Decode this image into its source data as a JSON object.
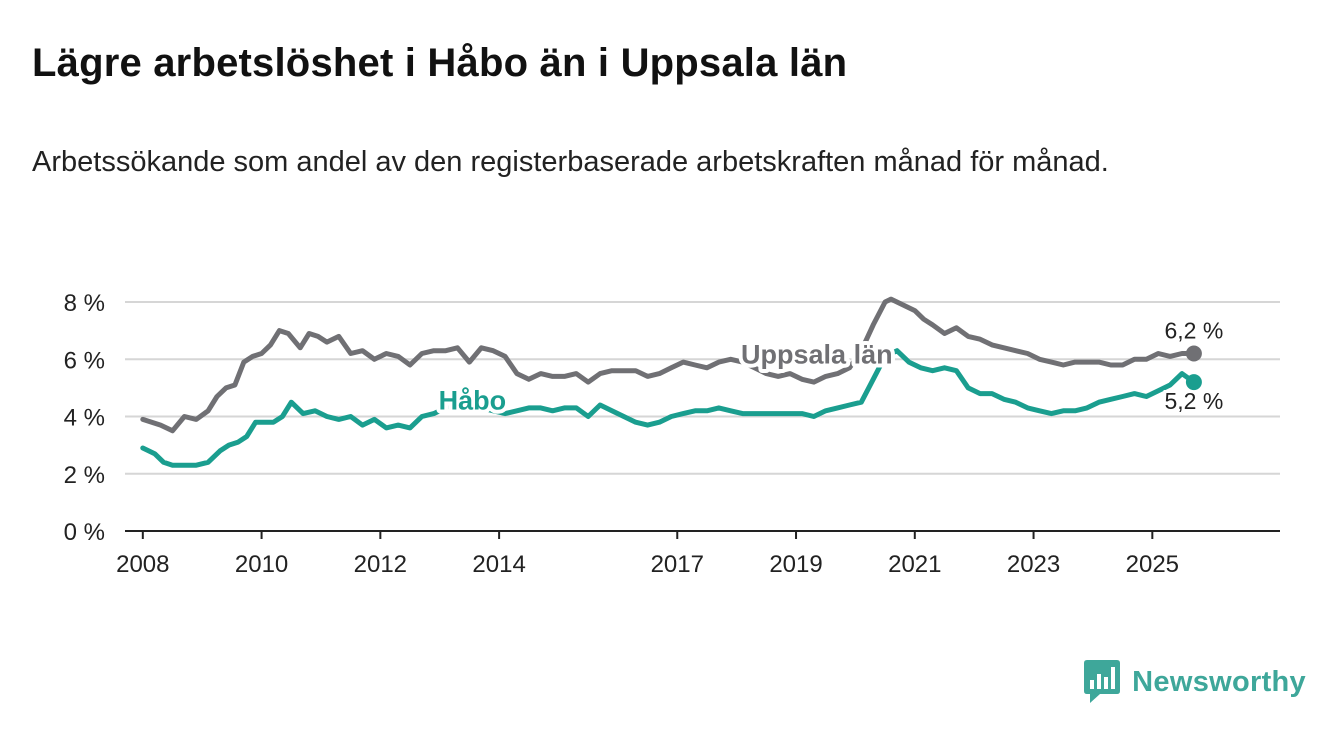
{
  "title": "Lägre arbetslöshet i Håbo än i Uppsala län",
  "subtitle": "Arbetssökande som andel av den registerbaserade arbetskraften månad för månad.",
  "brand": {
    "name": "Newsworthy",
    "icon": "bar-chart-logo-icon"
  },
  "colors": {
    "uppsala": "#707074",
    "habo": "#1a9e8f",
    "grid": "#d6d6d6",
    "axis": "#222222",
    "brand": "#3ea79a"
  },
  "chart_data": {
    "type": "line",
    "title": "Lägre arbetslöshet i Håbo än i Uppsala län",
    "xlabel": "",
    "ylabel": "",
    "ylim": [
      0,
      8
    ],
    "xlim": [
      2007.7,
      2027.15
    ],
    "y_ticks": [
      0,
      2,
      4,
      6,
      8
    ],
    "y_tick_labels": [
      "0 %",
      "2 %",
      "4 %",
      "6 %",
      "8 %"
    ],
    "x_ticks": [
      2008,
      2010,
      2012,
      2014,
      2017,
      2019,
      2021,
      2023,
      2025
    ],
    "x_tick_labels": [
      "2008",
      "2010",
      "2012",
      "2014",
      "2017",
      "2019",
      "2021",
      "2023",
      "2025"
    ],
    "grid": true,
    "series": [
      {
        "name": "Uppsala län",
        "color": "#707074",
        "end_label": "6,2 %",
        "x": [
          2008.0,
          2008.3,
          2008.5,
          2008.7,
          2008.9,
          2009.1,
          2009.25,
          2009.4,
          2009.55,
          2009.7,
          2009.85,
          2010.0,
          2010.15,
          2010.3,
          2010.45,
          2010.65,
          2010.8,
          2010.95,
          2011.1,
          2011.3,
          2011.5,
          2011.7,
          2011.9,
          2012.1,
          2012.3,
          2012.5,
          2012.7,
          2012.9,
          2013.1,
          2013.3,
          2013.5,
          2013.7,
          2013.9,
          2014.1,
          2014.3,
          2014.5,
          2014.7,
          2014.9,
          2015.1,
          2015.3,
          2015.5,
          2015.7,
          2015.9,
          2016.1,
          2016.3,
          2016.5,
          2016.7,
          2016.9,
          2017.1,
          2017.3,
          2017.5,
          2017.7,
          2017.9,
          2018.1,
          2018.3,
          2018.5,
          2018.7,
          2018.9,
          2019.1,
          2019.3,
          2019.5,
          2019.7,
          2019.9,
          2020.1,
          2020.3,
          2020.5,
          2020.6,
          2020.8,
          2021.0,
          2021.15,
          2021.3,
          2021.5,
          2021.7,
          2021.9,
          2022.1,
          2022.3,
          2022.5,
          2022.7,
          2022.9,
          2023.1,
          2023.3,
          2023.5,
          2023.7,
          2023.9,
          2024.1,
          2024.3,
          2024.5,
          2024.7,
          2024.9,
          2025.1,
          2025.3,
          2025.5,
          2025.7
        ],
        "y": [
          3.9,
          3.7,
          3.5,
          4.0,
          3.9,
          4.2,
          4.7,
          5.0,
          5.1,
          5.9,
          6.1,
          6.2,
          6.5,
          7.0,
          6.9,
          6.4,
          6.9,
          6.8,
          6.6,
          6.8,
          6.2,
          6.3,
          6.0,
          6.2,
          6.1,
          5.8,
          6.2,
          6.3,
          6.3,
          6.4,
          5.9,
          6.4,
          6.3,
          6.1,
          5.5,
          5.3,
          5.5,
          5.4,
          5.4,
          5.5,
          5.2,
          5.5,
          5.6,
          5.6,
          5.6,
          5.4,
          5.5,
          5.7,
          5.9,
          5.8,
          5.7,
          5.9,
          6.0,
          5.9,
          5.7,
          5.5,
          5.4,
          5.5,
          5.3,
          5.2,
          5.4,
          5.5,
          5.7,
          6.3,
          7.2,
          8.0,
          8.1,
          7.9,
          7.7,
          7.4,
          7.2,
          6.9,
          7.1,
          6.8,
          6.7,
          6.5,
          6.4,
          6.3,
          6.2,
          6.0,
          5.9,
          5.8,
          5.9,
          5.9,
          5.9,
          5.8,
          5.8,
          6.0,
          6.0,
          6.2,
          6.1,
          6.2,
          6.2
        ]
      },
      {
        "name": "Håbo",
        "color": "#1a9e8f",
        "end_label": "5,2 %",
        "x": [
          2008.0,
          2008.2,
          2008.35,
          2008.5,
          2008.7,
          2008.9,
          2009.1,
          2009.3,
          2009.45,
          2009.6,
          2009.75,
          2009.9,
          2010.05,
          2010.2,
          2010.35,
          2010.5,
          2010.7,
          2010.9,
          2011.1,
          2011.3,
          2011.5,
          2011.7,
          2011.9,
          2012.1,
          2012.3,
          2012.5,
          2012.7,
          2012.9,
          2013.1,
          2013.3,
          2013.5,
          2013.7,
          2013.9,
          2014.1,
          2014.3,
          2014.5,
          2014.7,
          2014.9,
          2015.1,
          2015.3,
          2015.5,
          2015.7,
          2015.9,
          2016.1,
          2016.3,
          2016.5,
          2016.7,
          2016.9,
          2017.1,
          2017.3,
          2017.5,
          2017.7,
          2017.9,
          2018.1,
          2018.3,
          2018.5,
          2018.7,
          2018.9,
          2019.1,
          2019.3,
          2019.5,
          2019.7,
          2019.9,
          2020.1,
          2020.3,
          2020.5,
          2020.7,
          2020.9,
          2021.1,
          2021.3,
          2021.5,
          2021.7,
          2021.9,
          2022.1,
          2022.3,
          2022.5,
          2022.7,
          2022.9,
          2023.1,
          2023.3,
          2023.5,
          2023.7,
          2023.9,
          2024.1,
          2024.3,
          2024.5,
          2024.7,
          2024.9,
          2025.1,
          2025.3,
          2025.5,
          2025.7
        ],
        "y": [
          2.9,
          2.7,
          2.4,
          2.3,
          2.3,
          2.3,
          2.4,
          2.8,
          3.0,
          3.1,
          3.3,
          3.8,
          3.8,
          3.8,
          4.0,
          4.5,
          4.1,
          4.2,
          4.0,
          3.9,
          4.0,
          3.7,
          3.9,
          3.6,
          3.7,
          3.6,
          4.0,
          4.1,
          4.3,
          4.6,
          4.5,
          4.3,
          4.2,
          4.1,
          4.2,
          4.3,
          4.3,
          4.2,
          4.3,
          4.3,
          4.0,
          4.4,
          4.2,
          4.0,
          3.8,
          3.7,
          3.8,
          4.0,
          4.1,
          4.2,
          4.2,
          4.3,
          4.2,
          4.1,
          4.1,
          4.1,
          4.1,
          4.1,
          4.1,
          4.0,
          4.2,
          4.3,
          4.4,
          4.5,
          5.3,
          6.1,
          6.3,
          5.9,
          5.7,
          5.6,
          5.7,
          5.6,
          5.0,
          4.8,
          4.8,
          4.6,
          4.5,
          4.3,
          4.2,
          4.1,
          4.2,
          4.2,
          4.3,
          4.5,
          4.6,
          4.7,
          4.8,
          4.7,
          4.9,
          5.1,
          5.5,
          5.2
        ]
      }
    ]
  }
}
